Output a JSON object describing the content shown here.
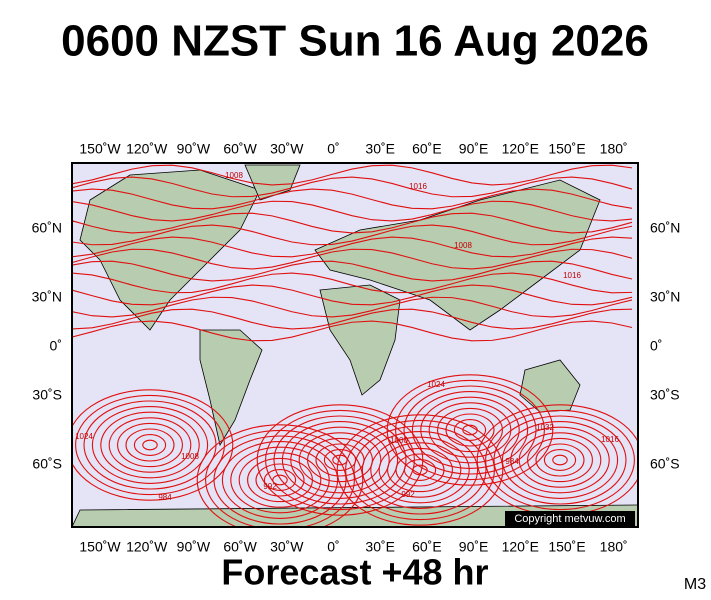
{
  "header": {
    "title": "0600 NZST Sun 16 Aug 2026"
  },
  "map": {
    "lon_labels": [
      "150˚W",
      "120˚W",
      "90˚W",
      "60˚W",
      "30˚W",
      "0˚",
      "30˚E",
      "60˚E",
      "90˚E",
      "120˚E",
      "150˚E",
      "180˚"
    ],
    "lat_labels": [
      "60˚N",
      "30˚N",
      "0˚",
      "30˚S",
      "60˚S"
    ],
    "isobar_labels": [
      "1008",
      "1016",
      "1008",
      "1016",
      "1024",
      "992",
      "984",
      "1000",
      "1024",
      "1032",
      "1016",
      "1008",
      "984",
      "992"
    ],
    "copyright": "Copyright metvuw.com"
  },
  "footer": {
    "forecast": "Forecast +48 hr",
    "code": "M3"
  }
}
